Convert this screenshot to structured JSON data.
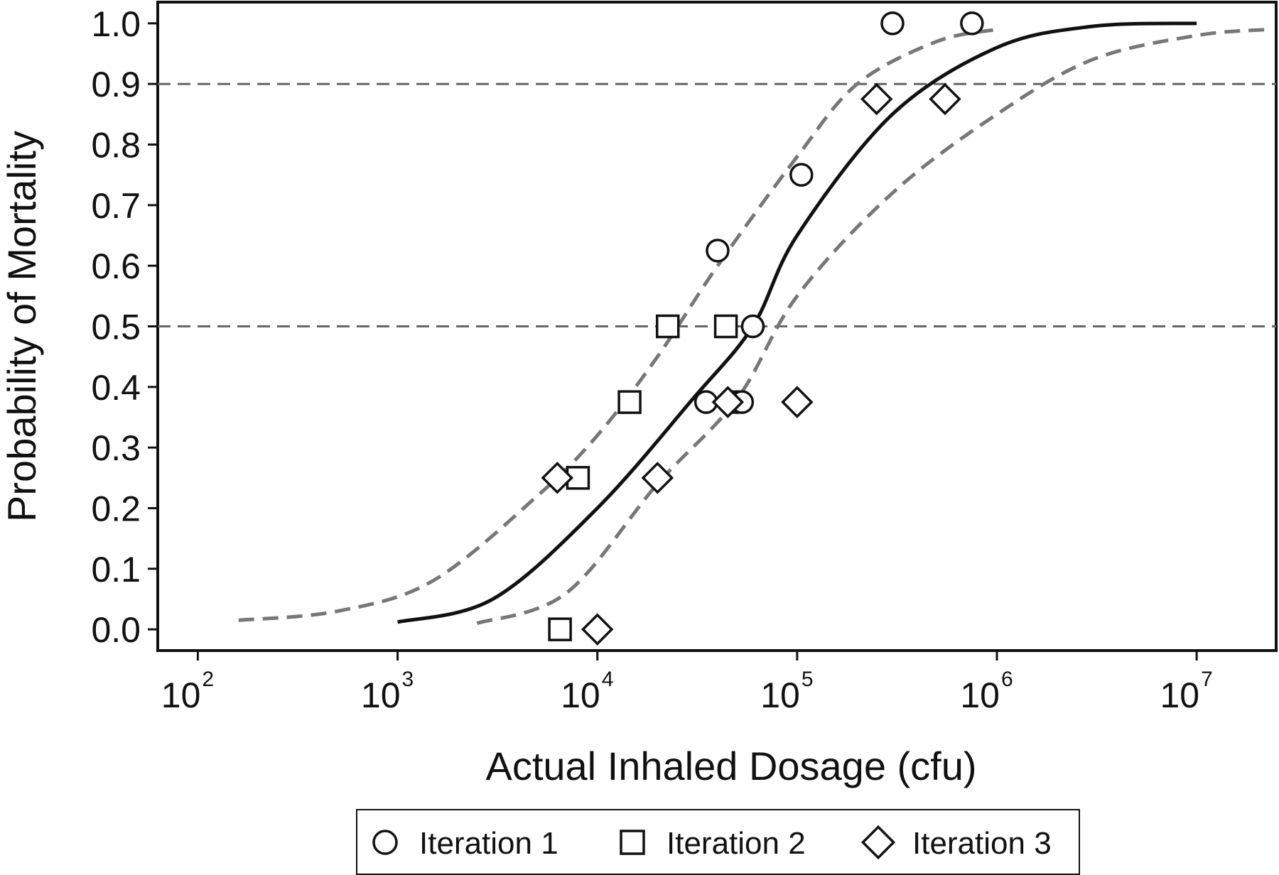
{
  "chart_data": {
    "type": "scatter",
    "xlabel": "Actual Inhaled Dosage (cfu)",
    "ylabel": "Probability of Mortality",
    "x_scale": "log",
    "xlim": [
      63,
      25000000
    ],
    "ylim": [
      -0.035,
      1.035
    ],
    "x_ticks": [
      {
        "value": 100,
        "base": "10",
        "exp": "2"
      },
      {
        "value": 1000,
        "base": "10",
        "exp": "3"
      },
      {
        "value": 10000,
        "base": "10",
        "exp": "4"
      },
      {
        "value": 100000,
        "base": "10",
        "exp": "5"
      },
      {
        "value": 1000000,
        "base": "10",
        "exp": "6"
      },
      {
        "value": 10000000,
        "base": "10",
        "exp": "7"
      }
    ],
    "y_ticks": [
      "0.0",
      "0.1",
      "0.2",
      "0.3",
      "0.4",
      "0.5",
      "0.6",
      "0.7",
      "0.8",
      "0.9",
      "1.0"
    ],
    "reference_lines": [
      0.5,
      0.9
    ],
    "grid": false,
    "legend_position": "bottom",
    "series": [
      {
        "name": "Iteration 1",
        "marker": "circle",
        "points": [
          {
            "x": 35000,
            "y": 0.375
          },
          {
            "x": 47000,
            "y": 0.375
          },
          {
            "x": 50000,
            "y": 0.375
          },
          {
            "x": 53000,
            "y": 0.375
          },
          {
            "x": 40000,
            "y": 0.625
          },
          {
            "x": 60000,
            "y": 0.5
          },
          {
            "x": 105000,
            "y": 0.75
          },
          {
            "x": 300000,
            "y": 1.0
          },
          {
            "x": 750000,
            "y": 1.0
          }
        ]
      },
      {
        "name": "Iteration 2",
        "marker": "square",
        "points": [
          {
            "x": 6500,
            "y": 0.0
          },
          {
            "x": 8000,
            "y": 0.25
          },
          {
            "x": 14500,
            "y": 0.375
          },
          {
            "x": 22500,
            "y": 0.5
          },
          {
            "x": 44000,
            "y": 0.5
          }
        ]
      },
      {
        "name": "Iteration 3",
        "marker": "diamond",
        "points": [
          {
            "x": 10000,
            "y": 0.0
          },
          {
            "x": 6300,
            "y": 0.25
          },
          {
            "x": 20000,
            "y": 0.25
          },
          {
            "x": 45000,
            "y": 0.375
          },
          {
            "x": 100000,
            "y": 0.375
          },
          {
            "x": 250000,
            "y": 0.875
          },
          {
            "x": 550000,
            "y": 0.875
          }
        ]
      }
    ],
    "curves": [
      {
        "style": "solid",
        "color": "#111111",
        "points": [
          [
            1000,
            0.012
          ],
          [
            3000,
            0.05
          ],
          [
            10000,
            0.2
          ],
          [
            30000,
            0.38
          ],
          [
            60000,
            0.5
          ],
          [
            100000,
            0.65
          ],
          [
            300000,
            0.85
          ],
          [
            1000000,
            0.96
          ],
          [
            3000000,
            0.995
          ],
          [
            10000000,
            1.0
          ]
        ]
      },
      {
        "style": "dashed",
        "color": "#777777",
        "points": [
          [
            160,
            0.015
          ],
          [
            500,
            0.03
          ],
          [
            1500,
            0.08
          ],
          [
            5000,
            0.22
          ],
          [
            10000,
            0.32
          ],
          [
            20000,
            0.45
          ],
          [
            40000,
            0.6
          ],
          [
            100000,
            0.78
          ],
          [
            200000,
            0.9
          ],
          [
            500000,
            0.97
          ],
          [
            1000000,
            0.99
          ]
        ]
      },
      {
        "style": "dashed",
        "color": "#777777",
        "points": [
          [
            2500,
            0.01
          ],
          [
            7000,
            0.06
          ],
          [
            20000,
            0.24
          ],
          [
            50000,
            0.38
          ],
          [
            100000,
            0.55
          ],
          [
            300000,
            0.72
          ],
          [
            1000000,
            0.85
          ],
          [
            3000000,
            0.94
          ],
          [
            10000000,
            0.98
          ],
          [
            23000000,
            0.99
          ]
        ]
      }
    ]
  },
  "colors": {
    "frame": "#111111",
    "fit": "#111111",
    "band": "#777777",
    "reference": "#666666",
    "marker": "#111111"
  },
  "icons": {
    "circle": "circle-marker-icon",
    "square": "square-marker-icon",
    "diamond": "diamond-marker-icon"
  }
}
